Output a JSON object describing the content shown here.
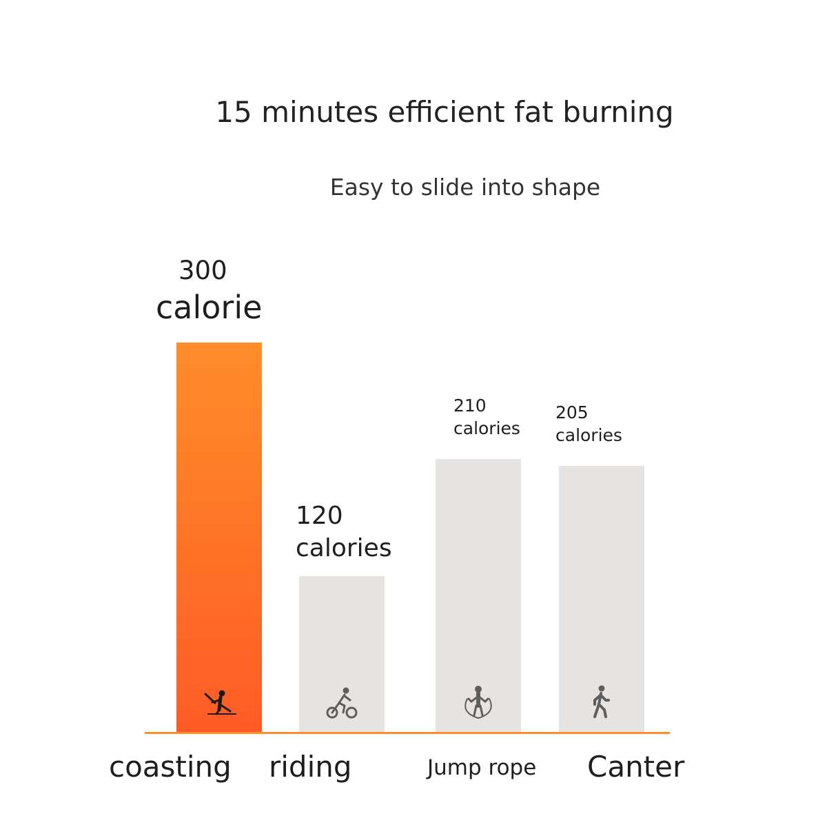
{
  "chart_data": {
    "type": "bar",
    "title": "15 minutes efficient fat burning",
    "subtitle": "Easy to slide into shape",
    "categories": [
      "coasting",
      "riding",
      "Jump rope",
      "Canter"
    ],
    "values": [
      300,
      120,
      210,
      205
    ],
    "data_labels": [
      {
        "value": "300",
        "unit": "calorie"
      },
      {
        "value": "120",
        "unit": "calories"
      },
      {
        "value": "210",
        "unit": "calories"
      },
      {
        "value": "205",
        "unit": "calories"
      }
    ],
    "icons": [
      "skating-icon",
      "cycling-icon",
      "jump-rope-icon",
      "walking-icon"
    ],
    "highlight_index": 0,
    "ylim": [
      0,
      300
    ],
    "grid": false,
    "colors": {
      "highlight_top": "#ff8d2a",
      "highlight_bottom": "#ff5b25",
      "bar": "#e6e3e1",
      "baseline": "#ff8f2b"
    }
  }
}
